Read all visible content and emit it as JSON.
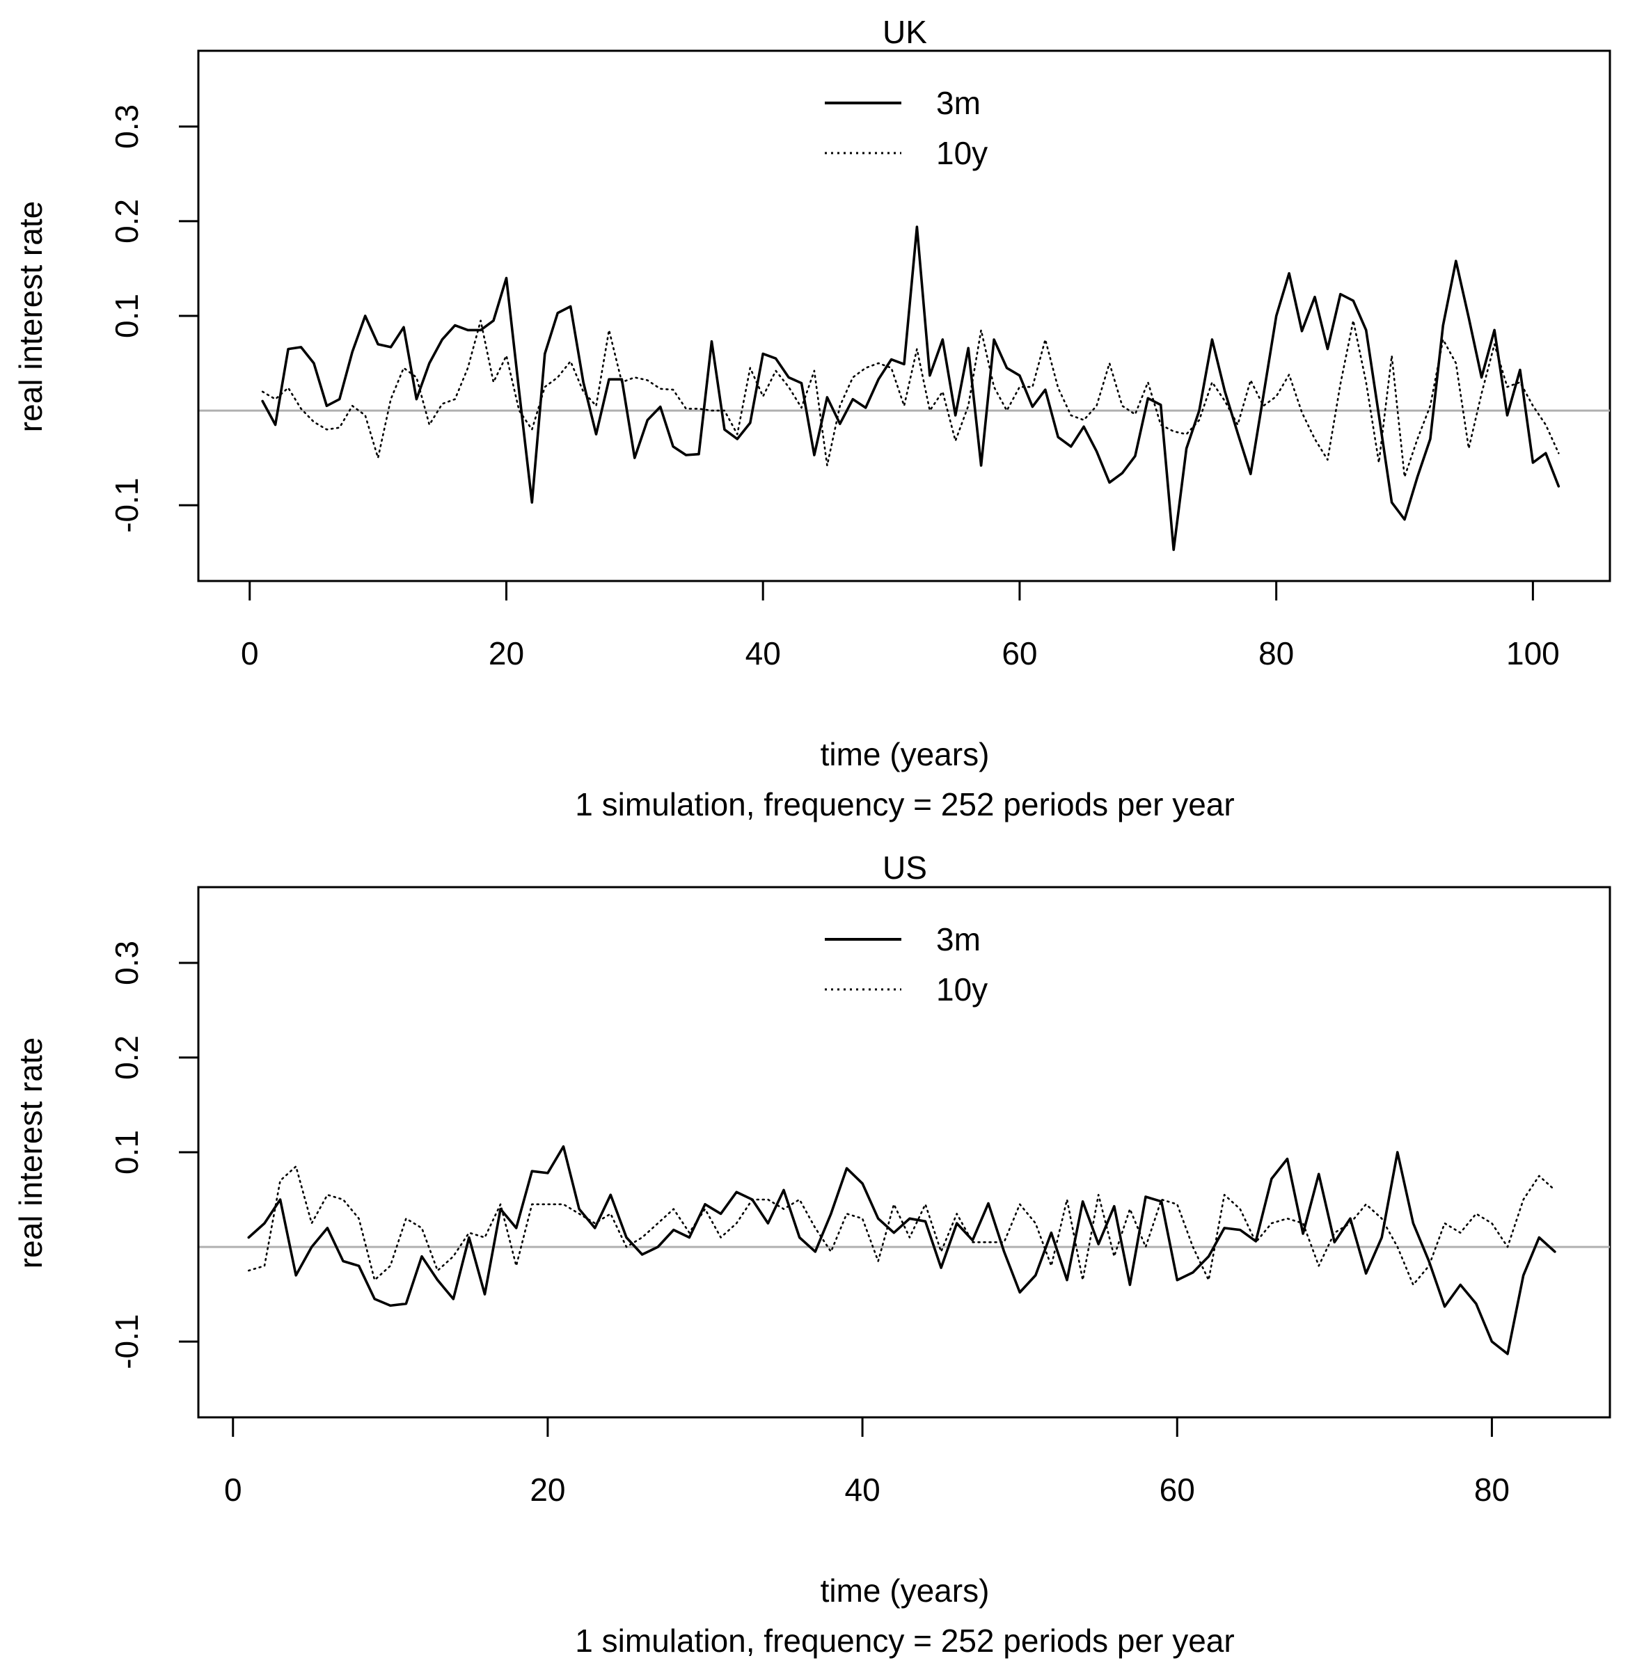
{
  "chart_data": [
    {
      "type": "line",
      "title": "UK",
      "xlabel": "time (years)",
      "subtitle": "1 simulation, frequency = 252 periods per year",
      "ylabel": "real interest rate",
      "xlim": [
        -4,
        106
      ],
      "ylim": [
        -0.18,
        0.38
      ],
      "xticks": [
        0,
        20,
        40,
        60,
        80,
        100
      ],
      "xtick_labels": [
        "0",
        "20",
        "40",
        "60",
        "80",
        "100"
      ],
      "yticks": [
        -0.1,
        0.1,
        0.2,
        0.3
      ],
      "ytick_labels": [
        "-0.1",
        "0.1",
        "0.2",
        "0.3"
      ],
      "hline": 0,
      "legend_position": "top-center",
      "series": [
        {
          "name": "3m",
          "style": "solid",
          "x": [
            1,
            2,
            3,
            4,
            5,
            6,
            7,
            8,
            9,
            10,
            11,
            12,
            13,
            14,
            15,
            16,
            17,
            18,
            19,
            20,
            21,
            22,
            23,
            24,
            25,
            26,
            27,
            28,
            29,
            30,
            31,
            32,
            33,
            34,
            35,
            36,
            37,
            38,
            39,
            40,
            41,
            42,
            43,
            44,
            45,
            46,
            47,
            48,
            49,
            50,
            51,
            52,
            53,
            54,
            55,
            56,
            57,
            58,
            59,
            60,
            61,
            62,
            63,
            64,
            65,
            66,
            67,
            68,
            69,
            70,
            71,
            72,
            73,
            74,
            75,
            76,
            77,
            78,
            79,
            80,
            81,
            82,
            83,
            84,
            85,
            86,
            87,
            88,
            89,
            90,
            91,
            92,
            93,
            94,
            95,
            96,
            97,
            98,
            99,
            100,
            101,
            102
          ],
          "values": [
            0.01,
            -0.015,
            0.065,
            0.067,
            0.05,
            0.005,
            0.012,
            0.062,
            0.1,
            0.07,
            0.067,
            0.088,
            0.012,
            0.05,
            0.075,
            0.09,
            0.085,
            0.085,
            0.095,
            0.14,
            0.02,
            -0.097,
            0.06,
            0.103,
            0.11,
            0.03,
            -0.025,
            0.033,
            0.033,
            -0.05,
            -0.01,
            0.004,
            -0.038,
            -0.047,
            -0.046,
            0.073,
            -0.02,
            -0.03,
            -0.013,
            0.06,
            0.055,
            0.035,
            0.029,
            -0.047,
            0.014,
            -0.014,
            0.012,
            0.003,
            0.033,
            0.054,
            0.049,
            0.194,
            0.037,
            0.075,
            -0.005,
            0.066,
            -0.058,
            0.075,
            0.045,
            0.037,
            0.004,
            0.022,
            -0.028,
            -0.038,
            -0.017,
            -0.043,
            -0.076,
            -0.066,
            -0.048,
            0.013,
            0.006,
            -0.147,
            -0.04,
            0.0,
            0.075,
            0.02,
            -0.024,
            -0.067,
            0.016,
            0.1,
            0.145,
            0.084,
            0.12,
            0.065,
            0.123,
            0.116,
            0.085,
            -0.005,
            -0.097,
            -0.115,
            -0.07,
            -0.03,
            0.09,
            0.158,
            0.098,
            0.035,
            0.085,
            -0.005,
            0.043,
            -0.055,
            -0.045,
            -0.08
          ]
        },
        {
          "name": "10y",
          "style": "dotted",
          "x": [
            1,
            2,
            3,
            4,
            5,
            6,
            7,
            8,
            9,
            10,
            11,
            12,
            13,
            14,
            15,
            16,
            17,
            18,
            19,
            20,
            21,
            22,
            23,
            24,
            25,
            26,
            27,
            28,
            29,
            30,
            31,
            32,
            33,
            34,
            35,
            36,
            37,
            38,
            39,
            40,
            41,
            42,
            43,
            44,
            45,
            46,
            47,
            48,
            49,
            50,
            51,
            52,
            53,
            54,
            55,
            56,
            57,
            58,
            59,
            60,
            61,
            62,
            63,
            64,
            65,
            66,
            67,
            68,
            69,
            70,
            71,
            72,
            73,
            74,
            75,
            76,
            77,
            78,
            79,
            80,
            81,
            82,
            83,
            84,
            85,
            86,
            87,
            88,
            89,
            90,
            91,
            92,
            93,
            94,
            95,
            96,
            97,
            98,
            99,
            100,
            101,
            102
          ],
          "values": [
            0.02,
            0.012,
            0.024,
            0.002,
            -0.012,
            -0.02,
            -0.018,
            0.005,
            -0.005,
            -0.05,
            0.012,
            0.045,
            0.035,
            -0.015,
            0.007,
            0.012,
            0.045,
            0.095,
            0.03,
            0.058,
            0.0,
            -0.02,
            0.025,
            0.035,
            0.052,
            0.02,
            0.005,
            0.085,
            0.03,
            0.035,
            0.032,
            0.023,
            0.022,
            0.002,
            0.002,
            0.0,
            0.0,
            -0.025,
            0.045,
            0.015,
            0.042,
            0.025,
            0.003,
            0.042,
            -0.058,
            0.005,
            0.035,
            0.045,
            0.05,
            0.045,
            0.005,
            0.065,
            0.0,
            0.02,
            -0.032,
            0.005,
            0.085,
            0.025,
            0.0,
            0.025,
            0.025,
            0.075,
            0.024,
            -0.005,
            -0.01,
            0.005,
            0.05,
            0.005,
            -0.004,
            0.03,
            -0.015,
            -0.022,
            -0.025,
            -0.01,
            0.03,
            0.01,
            -0.015,
            0.032,
            0.005,
            0.015,
            0.038,
            -0.002,
            -0.03,
            -0.052,
            0.028,
            0.095,
            0.03,
            -0.055,
            0.058,
            -0.07,
            -0.03,
            0.005,
            0.075,
            0.05,
            -0.04,
            0.018,
            0.07,
            0.025,
            0.03,
            0.005,
            -0.015,
            -0.045
          ]
        }
      ]
    },
    {
      "type": "line",
      "title": "US",
      "xlabel": "time (years)",
      "subtitle": "1 simulation, frequency = 252 periods per year",
      "ylabel": "real interest rate",
      "xlim": [
        -2.2,
        87.5
      ],
      "ylim": [
        -0.18,
        0.38
      ],
      "xticks": [
        0,
        20,
        40,
        60,
        80
      ],
      "xtick_labels": [
        "0",
        "20",
        "40",
        "60",
        "80"
      ],
      "yticks": [
        -0.1,
        0.1,
        0.2,
        0.3
      ],
      "ytick_labels": [
        "-0.1",
        "0.1",
        "0.2",
        "0.3"
      ],
      "hline": 0,
      "legend_position": "top-center",
      "series": [
        {
          "name": "3m",
          "style": "solid",
          "x": [
            1,
            2,
            3,
            4,
            5,
            6,
            7,
            8,
            9,
            10,
            11,
            12,
            13,
            14,
            15,
            16,
            17,
            18,
            19,
            20,
            21,
            22,
            23,
            24,
            25,
            26,
            27,
            28,
            29,
            30,
            31,
            32,
            33,
            34,
            35,
            36,
            37,
            38,
            39,
            40,
            41,
            42,
            43,
            44,
            45,
            46,
            47,
            48,
            49,
            50,
            51,
            52,
            53,
            54,
            55,
            56,
            57,
            58,
            59,
            60,
            61,
            62,
            63,
            64,
            65,
            66,
            67,
            68,
            69,
            70,
            71,
            72,
            73,
            74,
            75,
            76,
            77,
            78,
            79,
            80,
            81,
            82,
            83,
            84
          ],
          "values": [
            0.01,
            0.025,
            0.05,
            -0.03,
            0.0,
            0.02,
            -0.015,
            -0.02,
            -0.055,
            -0.062,
            -0.06,
            -0.01,
            -0.035,
            -0.055,
            0.01,
            -0.05,
            0.04,
            0.02,
            0.08,
            0.078,
            0.106,
            0.04,
            0.02,
            0.055,
            0.01,
            -0.008,
            0.0,
            0.018,
            0.01,
            0.045,
            0.035,
            0.058,
            0.05,
            0.025,
            0.06,
            0.01,
            -0.005,
            0.035,
            0.083,
            0.067,
            0.03,
            0.015,
            0.03,
            0.027,
            -0.022,
            0.025,
            0.007,
            0.046,
            -0.005,
            -0.048,
            -0.03,
            0.015,
            -0.035,
            0.048,
            0.003,
            0.043,
            -0.04,
            0.053,
            0.048,
            -0.035,
            -0.027,
            -0.01,
            0.02,
            0.018,
            0.006,
            0.072,
            0.093,
            0.014,
            0.077,
            0.005,
            0.03,
            -0.028,
            0.01,
            0.1,
            0.025,
            -0.015,
            -0.063,
            -0.04,
            -0.06,
            -0.1,
            -0.113,
            -0.03,
            0.01,
            -0.005
          ]
        },
        {
          "name": "10y",
          "style": "dotted",
          "x": [
            1,
            2,
            3,
            4,
            5,
            6,
            7,
            8,
            9,
            10,
            11,
            12,
            13,
            14,
            15,
            16,
            17,
            18,
            19,
            20,
            21,
            22,
            23,
            24,
            25,
            26,
            27,
            28,
            29,
            30,
            31,
            32,
            33,
            34,
            35,
            36,
            37,
            38,
            39,
            40,
            41,
            42,
            43,
            44,
            45,
            46,
            47,
            48,
            49,
            50,
            51,
            52,
            53,
            54,
            55,
            56,
            57,
            58,
            59,
            60,
            61,
            62,
            63,
            64,
            65,
            66,
            67,
            68,
            69,
            70,
            71,
            72,
            73,
            74,
            75,
            76,
            77,
            78,
            79,
            80,
            81,
            82,
            83,
            84
          ],
          "values": [
            -0.025,
            -0.02,
            0.07,
            0.085,
            0.025,
            0.055,
            0.05,
            0.03,
            -0.035,
            -0.02,
            0.03,
            0.02,
            -0.025,
            -0.01,
            0.015,
            0.01,
            0.045,
            -0.02,
            0.045,
            0.045,
            0.045,
            0.035,
            0.025,
            0.035,
            0.0,
            0.01,
            0.025,
            0.04,
            0.015,
            0.04,
            0.01,
            0.025,
            0.05,
            0.05,
            0.04,
            0.05,
            0.02,
            -0.005,
            0.035,
            0.03,
            -0.015,
            0.045,
            0.01,
            0.045,
            -0.005,
            0.035,
            0.005,
            0.005,
            0.005,
            0.045,
            0.025,
            -0.02,
            0.05,
            -0.035,
            0.055,
            -0.01,
            0.04,
            0.0,
            0.05,
            0.045,
            0.0,
            -0.035,
            0.055,
            0.04,
            0.005,
            0.025,
            0.03,
            0.025,
            -0.02,
            0.015,
            0.025,
            0.045,
            0.03,
            0.0,
            -0.04,
            -0.02,
            0.025,
            0.015,
            0.035,
            0.025,
            0.0,
            0.05,
            0.075,
            0.06
          ]
        }
      ]
    }
  ]
}
